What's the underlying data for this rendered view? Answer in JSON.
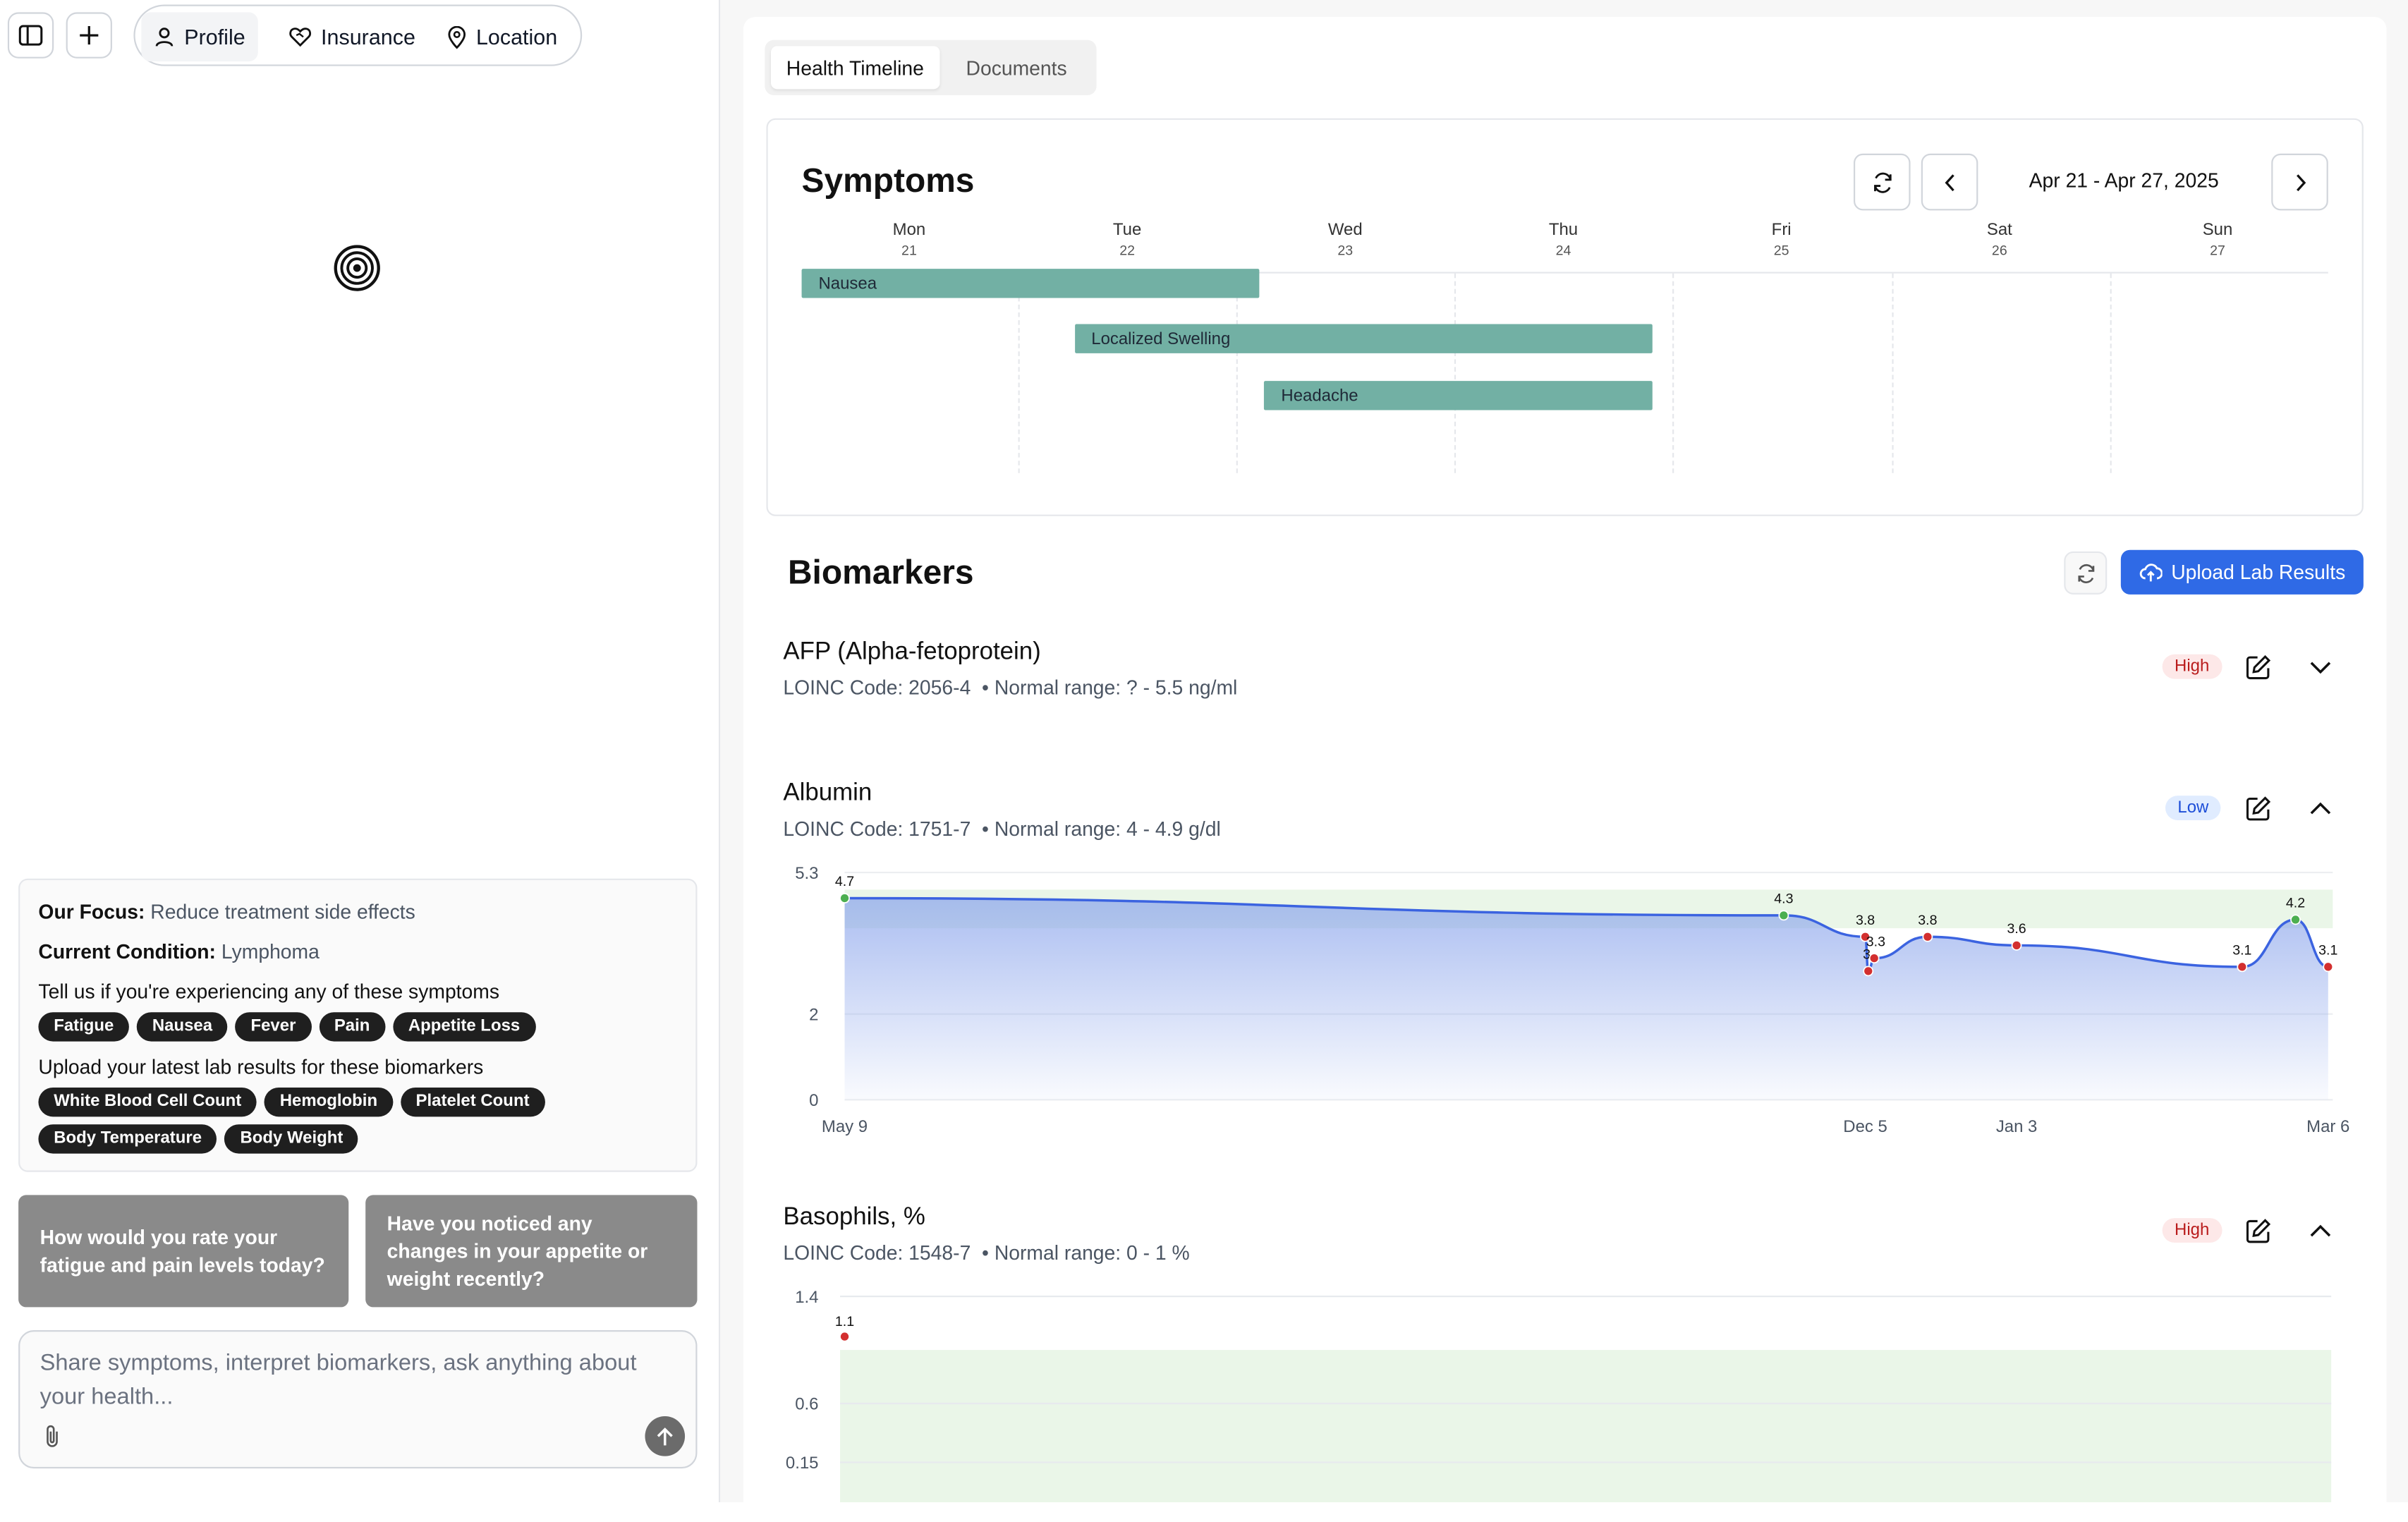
{
  "nav": {
    "tabs": [
      {
        "label": "Profile",
        "icon": "user-icon",
        "active": true
      },
      {
        "label": "Insurance",
        "icon": "heart-handshake-icon",
        "active": false
      },
      {
        "label": "Location",
        "icon": "map-pin-icon",
        "active": false
      }
    ]
  },
  "sidebar": {
    "focus_label": "Our Focus:",
    "focus_value": "Reduce treatment side effects",
    "condition_label": "Current Condition:",
    "condition_value": "Lymphoma",
    "symptoms_prompt": "Tell us if you're experiencing any of these symptoms",
    "symptom_chips": [
      "Fatigue",
      "Nausea",
      "Fever",
      "Pain",
      "Appetite Loss"
    ],
    "biomarkers_prompt": "Upload your latest lab results for these biomarkers",
    "biomarker_chips_row1": [
      "White Blood Cell Count",
      "Hemoglobin",
      "Platelet Count"
    ],
    "biomarker_chips_row2": [
      "Body Temperature",
      "Body Weight"
    ],
    "suggestions": [
      "How would you rate your fatigue and pain levels today?",
      "Have you noticed any changes in your appetite or weight recently?"
    ],
    "composer_placeholder": "Share symptoms, interpret biomarkers, ask anything about your health..."
  },
  "main": {
    "tabs": [
      {
        "label": "Health Timeline",
        "active": true
      },
      {
        "label": "Documents",
        "active": false
      }
    ],
    "symptoms": {
      "title": "Symptoms",
      "date_range": "Apr 21 - Apr 27, 2025",
      "days": [
        {
          "name": "Mon",
          "date": "21"
        },
        {
          "name": "Tue",
          "date": "22"
        },
        {
          "name": "Wed",
          "date": "23"
        },
        {
          "name": "Thu",
          "date": "24"
        },
        {
          "name": "Fri",
          "date": "25"
        },
        {
          "name": "Sat",
          "date": "26"
        },
        {
          "name": "Sun",
          "date": "27"
        }
      ],
      "entries": [
        {
          "label": "Nausea",
          "start_day": 0,
          "end_day": 2.1
        },
        {
          "label": "Localized Swelling",
          "start_day": 1.25,
          "end_day": 3.9
        },
        {
          "label": "Headache",
          "start_day": 2.12,
          "end_day": 3.9
        }
      ],
      "bar_color": "#72b0a4"
    },
    "biomarkers": {
      "title": "Biomarkers",
      "upload_label": "Upload Lab Results",
      "accent": "#2f6ae6",
      "items": [
        {
          "name": "AFP (Alpha-fetoprotein)",
          "subtitle": "LOINC Code: 2056-4  • Normal range: ? - 5.5 ng/ml",
          "status": "High",
          "expanded": false
        },
        {
          "name": "Albumin",
          "subtitle": "LOINC Code: 1751-7  • Normal range: 4 - 4.9 g/dl",
          "status": "Low",
          "expanded": true
        },
        {
          "name": "Basophils, %",
          "subtitle": "LOINC Code: 1548-7  • Normal range: 0 - 1 %",
          "status": "High",
          "expanded": true
        }
      ]
    }
  },
  "chart_data": [
    {
      "type": "area",
      "title": "Albumin",
      "y_ticks": [
        "5.3",
        "2",
        "0"
      ],
      "x_ticks": [
        "May 9",
        "Dec 5",
        "Jan 3",
        "Mar 6"
      ],
      "ylim": [
        0,
        5.3
      ],
      "normal_range": [
        4,
        4.9
      ],
      "points": [
        {
          "x": 0.0,
          "y": 4.7,
          "label": "4.7",
          "in_range": true
        },
        {
          "x": 0.633,
          "y": 4.3,
          "label": "4.3",
          "in_range": true
        },
        {
          "x": 0.688,
          "y": 3.8,
          "label": "3.8",
          "in_range": false
        },
        {
          "x": 0.69,
          "y": 3.0,
          "label": "3",
          "in_range": false
        },
        {
          "x": 0.694,
          "y": 3.3,
          "label": "3.3",
          "in_range": false
        },
        {
          "x": 0.73,
          "y": 3.8,
          "label": "3.8",
          "in_range": false
        },
        {
          "x": 0.79,
          "y": 3.6,
          "label": "3.6",
          "in_range": false
        },
        {
          "x": 0.942,
          "y": 3.1,
          "label": "3.1",
          "in_range": false
        },
        {
          "x": 0.978,
          "y": 4.2,
          "label": "4.2",
          "in_range": true
        },
        {
          "x": 1.0,
          "y": 3.1,
          "label": "3.1",
          "in_range": false
        }
      ],
      "line_color": "#3b63e0",
      "in_range_color": "#4caf50",
      "out_range_color": "#d32f2f",
      "band_color": "#eaf6e8"
    },
    {
      "type": "scatter",
      "title": "Basophils, %",
      "y_ticks": [
        "1.4",
        "0.6",
        "0.15"
      ],
      "ylim": [
        0,
        1.4
      ],
      "normal_range": [
        0,
        1
      ],
      "points": [
        {
          "x": 0.0,
          "y": 1.1,
          "label": "1.1",
          "in_range": false
        }
      ],
      "out_range_color": "#d32f2f",
      "band_color": "#eaf6e8"
    }
  ]
}
